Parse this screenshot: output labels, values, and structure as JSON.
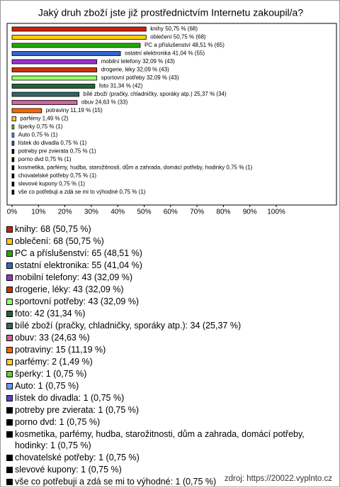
{
  "chart_data": {
    "type": "hbar",
    "title": "Jaký druh zboží jste již prostřednictvím Internetu zakoupil/a?",
    "values": [
      50.75,
      50.75,
      48.51,
      41.04,
      32.09,
      32.09,
      32.09,
      31.34,
      25.37,
      24.63,
      11.19,
      1.49,
      0.75,
      0.75,
      0.75,
      0.75,
      0.75,
      0.75,
      0.75,
      0.75,
      0.75
    ],
    "value_labels": [
      "knihy 50,75 % (68)",
      "oblečení 50,75 % (68)",
      "PC a příslušenství 48,51 % (65)",
      "ostatní elektronika 41,04 % (55)",
      "mobilní telefony 32,09 % (43)",
      "drogerie, léky 32,09 % (43)",
      "sportovní potřeby 32,09 % (43)",
      "foto 31,34 % (42)",
      "bílé zboží (pračky, chladničky, sporáky atp.) 25,37 % (34)",
      "obuv 24,63 % (33)",
      "potraviny 11,19 % (15)",
      "parfémy 1,49 % (2)",
      "šperky 0,75 % (1)",
      "Auto 0,75 % (1)",
      "lístek do divadla 0,75 % (1)",
      "potreby pre zvierata 0,75 % (1)",
      "porno dvd 0,75 % (1)",
      "kosmetika, parfémy, hudba, starožitnosti, dům a zahrada, domácí potřeby, hodinky 0,75 % (1)",
      "chovatelské potřeby 0,75 % (1)",
      "slevové kupony 0,75 % (1)",
      "vše co potřebuji a zdá se mi to výhodné 0,75 % (1)"
    ],
    "legend_labels": [
      "knihy: 68 (50,75 %)",
      "oblečení: 68 (50,75 %)",
      "PC a příslušenství: 65 (48,51 %)",
      "ostatní elektronika: 55 (41,04 %)",
      "mobilní telefony: 43 (32,09 %)",
      "drogerie, léky: 43 (32,09 %)",
      "sportovní potřeby: 43 (32,09 %)",
      "foto: 42 (31,34 %)",
      "bílé zboží (pračky, chladničky, sporáky atp.): 34 (25,37 %)",
      "obuv: 33 (24,63 %)",
      "potraviny: 15 (11,19 %)",
      "parfémy: 2 (1,49 %)",
      "šperky: 1 (0,75 %)",
      "Auto: 1 (0,75 %)",
      "lístek do divadla: 1 (0,75 %)",
      "potreby pre zvierata: 1 (0,75 %)",
      "porno dvd: 1 (0,75 %)",
      "kosmetika, parfémy, hudba, starožitnosti, dům a zahrada, domácí potřeby, hodinky: 1 (0,75 %)",
      "chovatelské potřeby: 1 (0,75 %)",
      "slevové kupony: 1 (0,75 %)",
      "vše co potřebuji a zdá se mi to výhodné: 1 (0,75 %)"
    ],
    "colors": [
      "#cc2200",
      "#ffcc00",
      "#22aa00",
      "#3366cc",
      "#9933cc",
      "#cc3300",
      "#99ff66",
      "#226633",
      "#336666",
      "#cc6699",
      "#ff6600",
      "#ffcc33",
      "#66cc33",
      "#6699ff",
      "#5544cc",
      "#000000",
      "#000000",
      "#000000",
      "#000000",
      "#000000",
      "#000000"
    ],
    "xlim": [
      0,
      100
    ],
    "xticks": [
      {
        "value": 0,
        "label": "0%"
      },
      {
        "value": 10,
        "label": "10%"
      },
      {
        "value": 20,
        "label": "20%"
      },
      {
        "value": 30,
        "label": "30%"
      },
      {
        "value": 40,
        "label": "40%"
      },
      {
        "value": 50,
        "label": "50%"
      },
      {
        "value": 60,
        "label": "60%"
      },
      {
        "value": 70,
        "label": "70%"
      },
      {
        "value": 80,
        "label": "80%"
      },
      {
        "value": 90,
        "label": "90%"
      },
      {
        "value": 100,
        "label": "100%"
      }
    ],
    "source": "zdroj: https://20022.vyplnto.cz"
  }
}
